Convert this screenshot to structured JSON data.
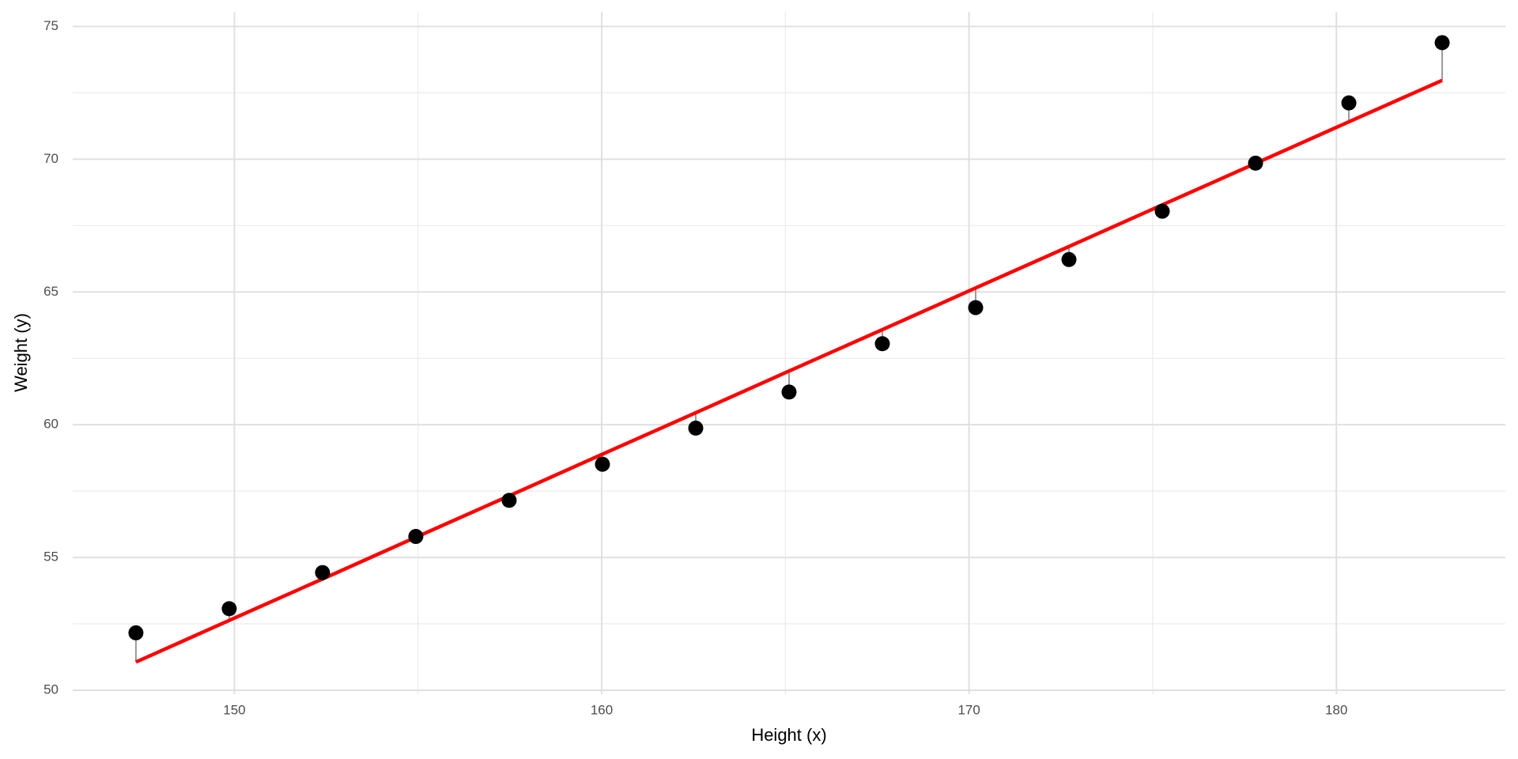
{
  "chart_data": {
    "type": "scatter",
    "x_label": "Height (x)",
    "y_label": "Weight (y)",
    "x": [
      147.32,
      149.86,
      152.4,
      154.94,
      157.48,
      160.02,
      162.56,
      165.1,
      167.64,
      170.18,
      172.72,
      175.26,
      177.8,
      180.34,
      182.88
    ],
    "series": [
      {
        "color": "#000000",
        "values": [
          52.16,
          53.07,
          54.43,
          55.79,
          57.15,
          58.51,
          59.87,
          61.23,
          63.05,
          64.41,
          66.22,
          68.04,
          69.85,
          72.12,
          74.39
        ]
      },
      {
        "color": "#ff0000",
        "values": [
          51.06,
          52.63,
          54.19,
          55.76,
          57.32,
          58.89,
          60.45,
          62.02,
          63.58,
          65.15,
          66.71,
          68.28,
          69.84,
          71.41,
          72.97
        ]
      }
    ],
    "residual_color": "#999999",
    "xlim": [
      145.6,
      184.6
    ],
    "ylim": [
      49.85,
      75.55
    ],
    "xticks": [
      150,
      160,
      170,
      180
    ],
    "yticks": [
      50,
      55,
      60,
      65,
      70,
      75
    ],
    "xminor": [
      155,
      165,
      175
    ],
    "yminor": [
      52.5,
      57.5,
      62.5,
      67.5,
      72.5
    ],
    "grid": true
  }
}
